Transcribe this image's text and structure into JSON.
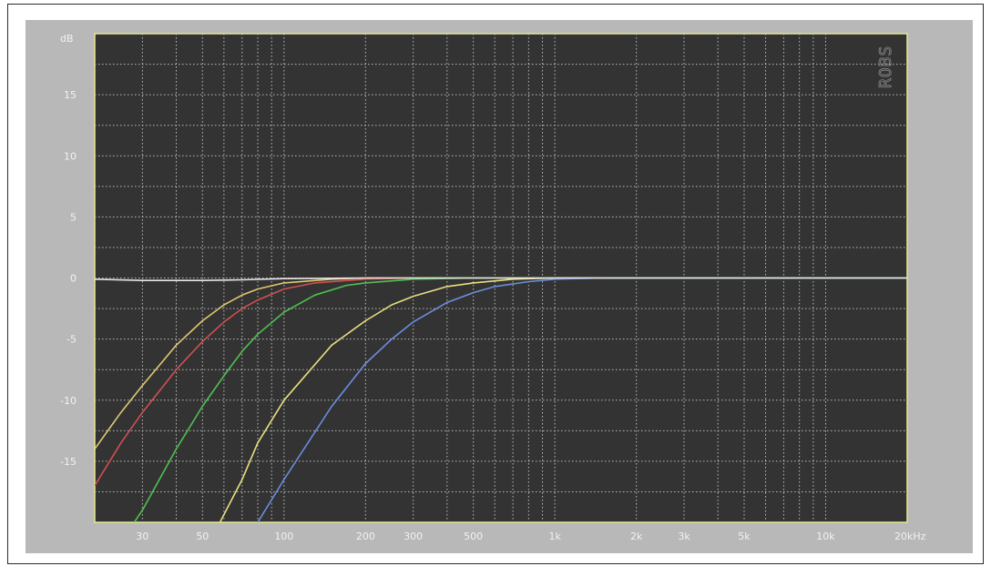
{
  "chart_data": {
    "type": "line",
    "title": "",
    "ylabel": "dB",
    "xunit": "Hz",
    "xscale": "log",
    "xlim": [
      20,
      20000
    ],
    "ylim": [
      -20,
      20
    ],
    "grid": true,
    "watermark": "ROBS",
    "y_ticks": [
      {
        "value": 15,
        "label": "15"
      },
      {
        "value": 10,
        "label": "10"
      },
      {
        "value": 5,
        "label": "5"
      },
      {
        "value": 0,
        "label": "0"
      },
      {
        "value": -5,
        "label": "-5"
      },
      {
        "value": -10,
        "label": "-10"
      },
      {
        "value": -15,
        "label": "-15"
      }
    ],
    "x_ticks": [
      {
        "value": 30,
        "label": "30"
      },
      {
        "value": 50,
        "label": "50"
      },
      {
        "value": 100,
        "label": "100"
      },
      {
        "value": 200,
        "label": "200"
      },
      {
        "value": 300,
        "label": "300"
      },
      {
        "value": 500,
        "label": "500"
      },
      {
        "value": 1000,
        "label": "1k"
      },
      {
        "value": 2000,
        "label": "2k"
      },
      {
        "value": 3000,
        "label": "3k"
      },
      {
        "value": 5000,
        "label": "5k"
      },
      {
        "value": 10000,
        "label": "10k"
      },
      {
        "value": 20000,
        "label": "20kHz"
      }
    ],
    "series": [
      {
        "color": "#e0c870",
        "points": [
          [
            20,
            -14
          ],
          [
            25,
            -11
          ],
          [
            30,
            -8.8
          ],
          [
            40,
            -5.5
          ],
          [
            50,
            -3.5
          ],
          [
            60,
            -2.2
          ],
          [
            70,
            -1.4
          ],
          [
            80,
            -0.9
          ],
          [
            100,
            -0.4
          ],
          [
            150,
            -0.1
          ],
          [
            200,
            0
          ],
          [
            20000,
            0
          ]
        ]
      },
      {
        "color": "#d05050",
        "points": [
          [
            20,
            -17
          ],
          [
            25,
            -13.5
          ],
          [
            30,
            -11
          ],
          [
            40,
            -7.5
          ],
          [
            50,
            -5.2
          ],
          [
            60,
            -3.6
          ],
          [
            70,
            -2.5
          ],
          [
            80,
            -1.8
          ],
          [
            100,
            -0.9
          ],
          [
            130,
            -0.4
          ],
          [
            200,
            -0.1
          ],
          [
            300,
            0
          ],
          [
            20000,
            0
          ]
        ]
      },
      {
        "color": "#50c050",
        "points": [
          [
            28,
            -20
          ],
          [
            30,
            -19
          ],
          [
            40,
            -14
          ],
          [
            50,
            -10.5
          ],
          [
            60,
            -8
          ],
          [
            70,
            -6
          ],
          [
            80,
            -4.6
          ],
          [
            100,
            -2.8
          ],
          [
            130,
            -1.4
          ],
          [
            170,
            -0.6
          ],
          [
            200,
            -0.4
          ],
          [
            300,
            -0.1
          ],
          [
            500,
            0
          ],
          [
            20000,
            0
          ]
        ]
      },
      {
        "color": "#e8e080",
        "points": [
          [
            58,
            -20
          ],
          [
            70,
            -16.5
          ],
          [
            80,
            -13.5
          ],
          [
            100,
            -10
          ],
          [
            150,
            -5.5
          ],
          [
            200,
            -3.5
          ],
          [
            250,
            -2.2
          ],
          [
            300,
            -1.5
          ],
          [
            400,
            -0.7
          ],
          [
            500,
            -0.4
          ],
          [
            700,
            -0.1
          ],
          [
            1000,
            0
          ],
          [
            20000,
            0
          ]
        ]
      },
      {
        "color": "#6a8ee0",
        "points": [
          [
            80,
            -20
          ],
          [
            100,
            -16.5
          ],
          [
            150,
            -10.5
          ],
          [
            200,
            -7
          ],
          [
            250,
            -5
          ],
          [
            300,
            -3.6
          ],
          [
            400,
            -2
          ],
          [
            500,
            -1.2
          ],
          [
            600,
            -0.7
          ],
          [
            800,
            -0.3
          ],
          [
            1000,
            -0.1
          ],
          [
            1500,
            0
          ],
          [
            20000,
            0
          ]
        ]
      },
      {
        "color": "#e6e6e6",
        "points": [
          [
            20,
            -0.1
          ],
          [
            30,
            -0.2
          ],
          [
            50,
            -0.2
          ],
          [
            70,
            -0.15
          ],
          [
            100,
            -0.05
          ],
          [
            200,
            0
          ],
          [
            20000,
            0
          ]
        ]
      }
    ]
  }
}
